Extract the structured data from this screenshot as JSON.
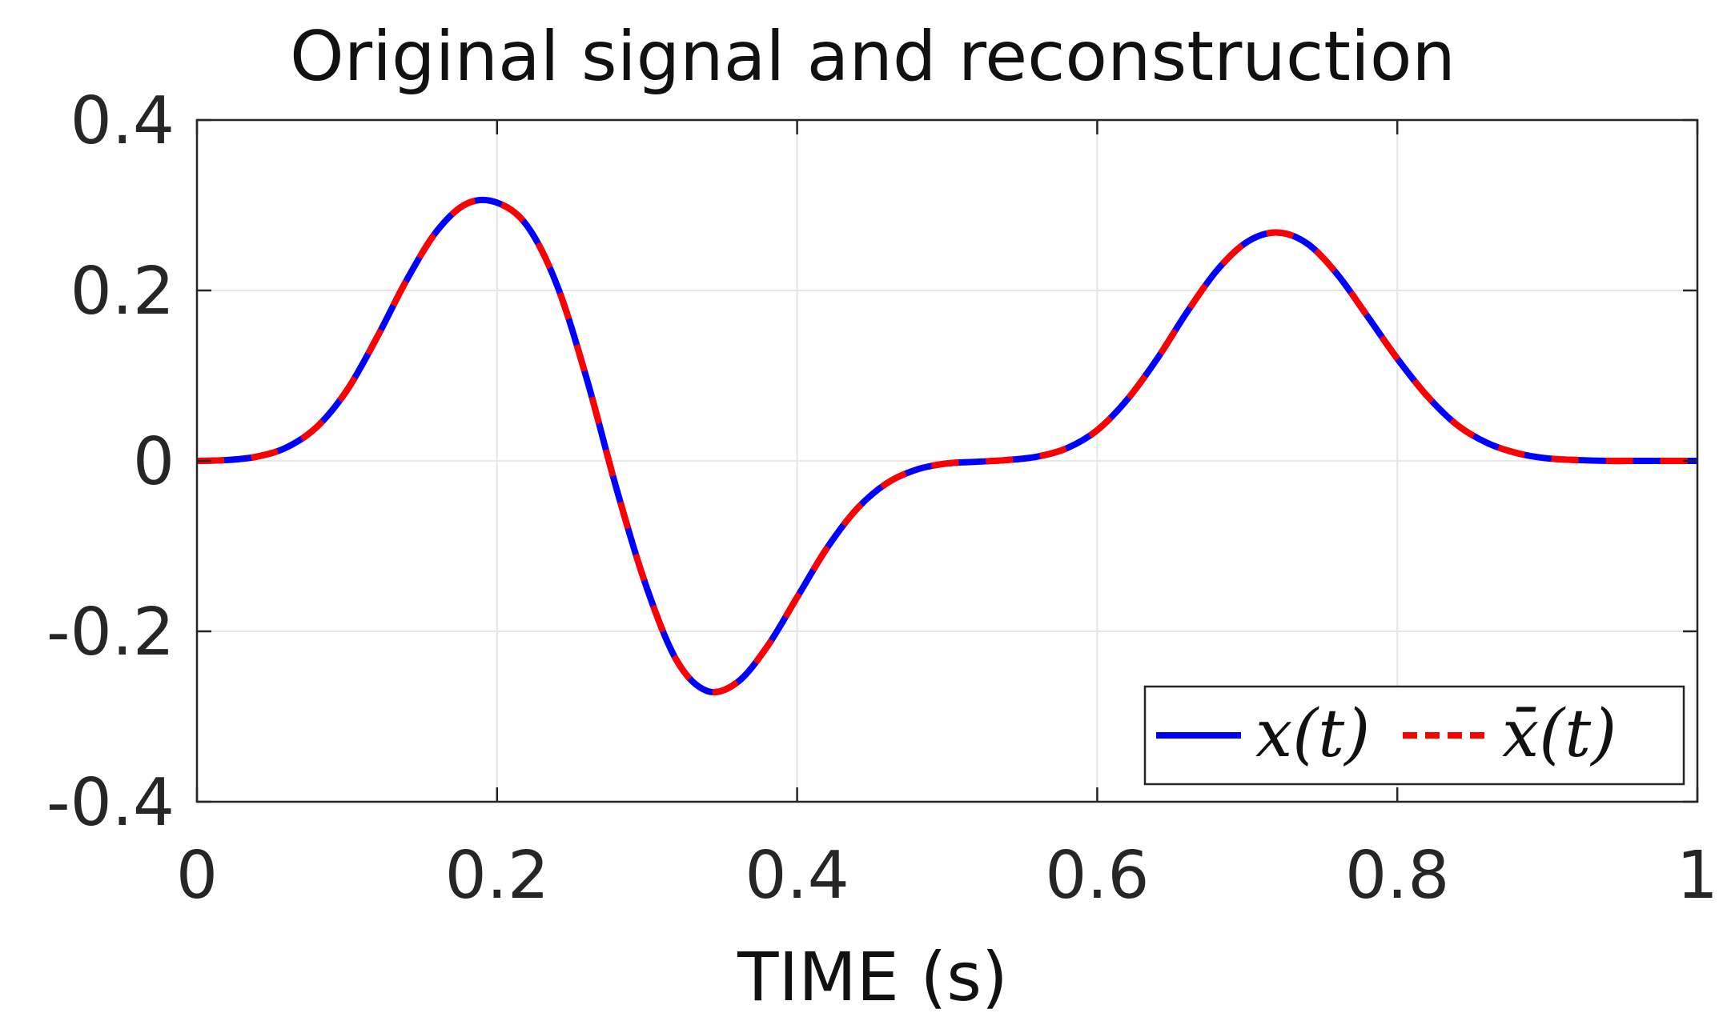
{
  "chart_data": {
    "type": "line",
    "title": "Original signal and reconstruction",
    "xlabel": "TIME (s)",
    "ylabel": "",
    "xlim": [
      0,
      1
    ],
    "ylim": [
      -0.4,
      0.4
    ],
    "xticks": [
      0,
      0.2,
      0.4,
      0.6,
      0.8,
      1
    ],
    "xtick_labels": [
      "0",
      "0.2",
      "0.4",
      "0.6",
      "0.8",
      "1"
    ],
    "yticks": [
      -0.4,
      -0.2,
      0,
      0.2,
      0.4
    ],
    "ytick_labels": [
      "-0.4",
      "-0.2",
      "0",
      "0.2",
      "0.4"
    ],
    "grid": true,
    "legend_position": "bottom-right",
    "x": [
      0,
      0.02,
      0.04,
      0.06,
      0.08,
      0.1,
      0.12,
      0.14,
      0.16,
      0.18,
      0.2,
      0.22,
      0.24,
      0.26,
      0.28,
      0.3,
      0.32,
      0.34,
      0.36,
      0.38,
      0.4,
      0.42,
      0.44,
      0.46,
      0.48,
      0.5,
      0.52,
      0.54,
      0.56,
      0.58,
      0.6,
      0.62,
      0.64,
      0.66,
      0.68,
      0.7,
      0.72,
      0.74,
      0.76,
      0.78,
      0.8,
      0.82,
      0.84,
      0.86,
      0.88,
      0.9,
      0.92,
      0.94,
      0.96,
      0.98,
      1.0
    ],
    "series": [
      {
        "name": "x(t)",
        "color": "#0000ff",
        "style": "solid",
        "values": [
          0.0,
          0.001,
          0.005,
          0.016,
          0.04,
          0.083,
          0.145,
          0.213,
          0.27,
          0.302,
          0.303,
          0.276,
          0.206,
          0.095,
          -0.035,
          -0.15,
          -0.235,
          -0.27,
          -0.26,
          -0.218,
          -0.16,
          -0.102,
          -0.056,
          -0.026,
          -0.01,
          -0.003,
          -0.001,
          0.001,
          0.005,
          0.015,
          0.036,
          0.072,
          0.12,
          0.175,
          0.224,
          0.257,
          0.268,
          0.255,
          0.219,
          0.17,
          0.12,
          0.076,
          0.042,
          0.021,
          0.009,
          0.003,
          0.001,
          0.0,
          0.0,
          0.0,
          0.0
        ]
      },
      {
        "name": "x̄(t)",
        "color": "#ff0000",
        "style": "dashed",
        "values": [
          0.0,
          0.001,
          0.005,
          0.016,
          0.04,
          0.083,
          0.145,
          0.213,
          0.27,
          0.302,
          0.303,
          0.276,
          0.206,
          0.095,
          -0.035,
          -0.15,
          -0.235,
          -0.27,
          -0.26,
          -0.218,
          -0.16,
          -0.102,
          -0.056,
          -0.026,
          -0.01,
          -0.003,
          -0.001,
          0.001,
          0.005,
          0.015,
          0.036,
          0.072,
          0.12,
          0.175,
          0.224,
          0.257,
          0.268,
          0.255,
          0.219,
          0.17,
          0.12,
          0.076,
          0.042,
          0.021,
          0.009,
          0.003,
          0.001,
          0.0,
          0.0,
          0.0,
          0.0
        ]
      }
    ]
  }
}
